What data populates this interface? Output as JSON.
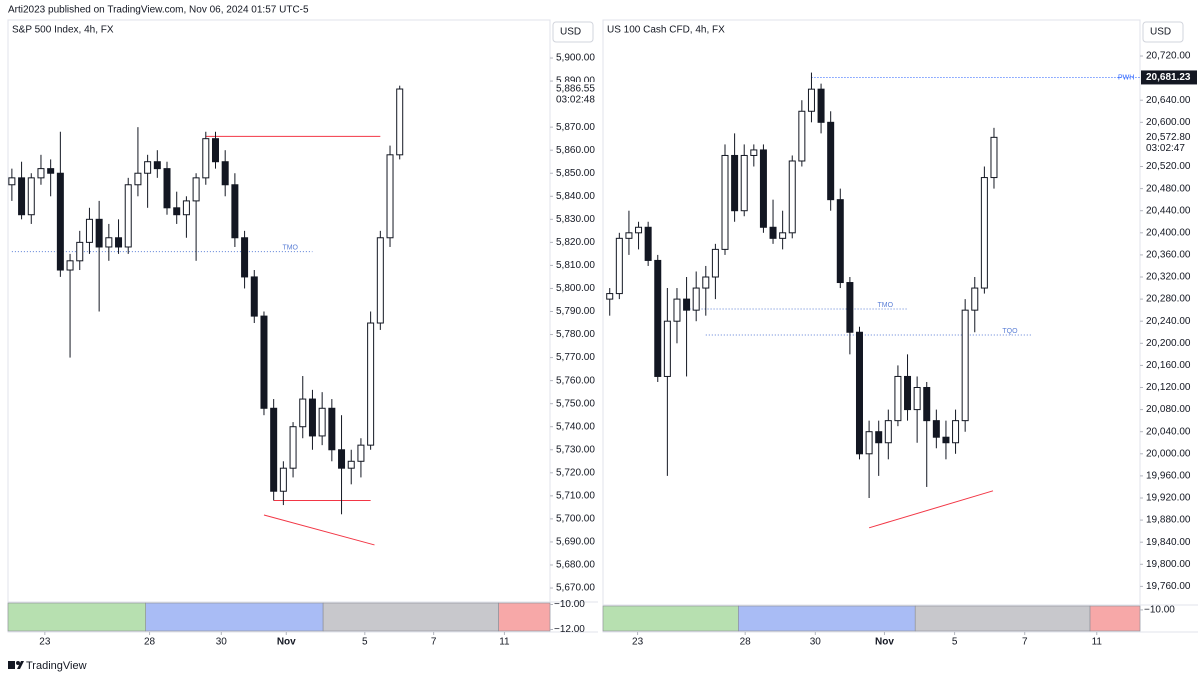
{
  "header": {
    "byline": "Arti2023 published on TradingView.com, Nov 06, 2024 01:57 UTC-5",
    "brand": "TradingView"
  },
  "chart_data": [
    {
      "type": "candlestick",
      "title": "S&P 500 Index, 4h, FX",
      "currency": "USD",
      "candles": {
        "open": [
          5845,
          5848,
          5832,
          5848,
          5852,
          5850,
          5808,
          5812,
          5820,
          5830,
          5818,
          5822,
          5818,
          5845,
          5850,
          5855,
          5852,
          5835,
          5832,
          5838,
          5848,
          5865,
          5855,
          5845,
          5822,
          5805,
          5788,
          5748,
          5712,
          5722,
          5740,
          5752,
          5736,
          5748,
          5730,
          5722,
          5725,
          5732,
          5785,
          5822,
          5858
        ],
        "high": [
          5852,
          5855,
          5850,
          5858,
          5856,
          5868,
          5815,
          5825,
          5835,
          5838,
          5828,
          5830,
          5848,
          5870,
          5858,
          5860,
          5855,
          5842,
          5840,
          5850,
          5868,
          5868,
          5860,
          5850,
          5825,
          5808,
          5790,
          5752,
          5725,
          5742,
          5762,
          5756,
          5755,
          5752,
          5745,
          5730,
          5735,
          5790,
          5825,
          5862,
          5888
        ],
        "low": [
          5838,
          5830,
          5828,
          5845,
          5840,
          5805,
          5770,
          5808,
          5815,
          5790,
          5812,
          5815,
          5815,
          5840,
          5835,
          5848,
          5832,
          5828,
          5822,
          5812,
          5845,
          5852,
          5840,
          5818,
          5800,
          5785,
          5745,
          5708,
          5706,
          5718,
          5735,
          5730,
          5732,
          5725,
          5702,
          5715,
          5718,
          5730,
          5782,
          5818,
          5856
        ],
        "close": [
          5848,
          5832,
          5848,
          5852,
          5850,
          5808,
          5812,
          5820,
          5830,
          5818,
          5822,
          5818,
          5845,
          5850,
          5855,
          5852,
          5835,
          5832,
          5838,
          5848,
          5865,
          5855,
          5845,
          5822,
          5805,
          5788,
          5748,
          5712,
          5722,
          5740,
          5752,
          5736,
          5748,
          5730,
          5722,
          5725,
          5732,
          5785,
          5822,
          5858,
          5886.55
        ]
      },
      "xlim": [
        -0.4,
        55.5
      ],
      "xticks": [
        {
          "value": 3.4,
          "label": "23"
        },
        {
          "value": 14.2,
          "label": "28"
        },
        {
          "value": 21.6,
          "label": "30"
        },
        {
          "value": 28.3,
          "label": "Nov"
        },
        {
          "value": 36.4,
          "label": "5"
        },
        {
          "value": 43.5,
          "label": "7"
        },
        {
          "value": 50.8,
          "label": "11"
        }
      ],
      "ylim": [
        5664.8,
        5916.5
      ],
      "yticks": [
        {
          "value": 5900,
          "label": "5,900.00"
        },
        {
          "value": 5890,
          "label": "5,890.00"
        },
        {
          "value": 5870,
          "label": "5,870.00"
        },
        {
          "value": 5860,
          "label": "5,860.00"
        },
        {
          "value": 5850,
          "label": "5,850.00"
        },
        {
          "value": 5840,
          "label": "5,840.00"
        },
        {
          "value": 5830,
          "label": "5,830.00"
        },
        {
          "value": 5820,
          "label": "5,820.00"
        },
        {
          "value": 5810,
          "label": "5,810.00"
        },
        {
          "value": 5800,
          "label": "5,800.00"
        },
        {
          "value": 5790,
          "label": "5,790.00"
        },
        {
          "value": 5780,
          "label": "5,780.00"
        },
        {
          "value": 5770,
          "label": "5,770.00"
        },
        {
          "value": 5760,
          "label": "5,760.00"
        },
        {
          "value": 5750,
          "label": "5,750.00"
        },
        {
          "value": 5740,
          "label": "5,740.00"
        },
        {
          "value": 5730,
          "label": "5,730.00"
        },
        {
          "value": 5720,
          "label": "5,720.00"
        },
        {
          "value": 5710,
          "label": "5,710.00"
        },
        {
          "value": 5700,
          "label": "5,700.00"
        },
        {
          "value": 5690,
          "label": "5,690.00"
        },
        {
          "value": 5680,
          "label": "5,680.00"
        },
        {
          "value": 5670,
          "label": "5,670.00"
        }
      ],
      "last": {
        "value": 5886.55,
        "label": "5,886.55",
        "countdown": "03:02:48"
      },
      "levels": [
        {
          "label": "TMO",
          "value": 5816,
          "from": 0,
          "to": 31,
          "color": "#5b7fd6",
          "style": "dotted"
        },
        {
          "value": 5866,
          "from": 20,
          "to": 38,
          "color": "#f23645",
          "style": "solid"
        },
        {
          "value": 5708,
          "from": 27,
          "to": 37,
          "color": "#f23645",
          "style": "solid"
        }
      ],
      "trendlines": [
        {
          "x": [
            26,
            37.4
          ],
          "y": [
            5701.7,
            5688.7
          ],
          "color": "#f23645"
        }
      ],
      "pane": {
        "ylim": [
          -9.8,
          -12.2
        ],
        "yticks": [
          {
            "value": -10,
            "label": "−10.00"
          },
          {
            "value": -12,
            "label": "−12.00"
          }
        ],
        "sessions": [
          {
            "from": -0.4,
            "to": 13.8,
            "color": "#b7e0b0"
          },
          {
            "from": 13.8,
            "to": 32.1,
            "color": "#a9bcf5"
          },
          {
            "from": 32.1,
            "to": 50.2,
            "color": "#c8c8cc"
          },
          {
            "from": 50.2,
            "to": 55.5,
            "color": "#f7a8a8"
          }
        ]
      }
    },
    {
      "type": "candlestick",
      "title": "US 100 Cash CFD, 4h, FX",
      "currency": "USD",
      "candles": {
        "open": [
          20280,
          20290,
          20390,
          20400,
          20410,
          20350,
          20140,
          20240,
          20280,
          20260,
          20300,
          20320,
          20370,
          20540,
          20440,
          20540,
          20550,
          20410,
          20390,
          20400,
          20530,
          20620,
          20660,
          20600,
          20460,
          20310,
          20220,
          20000,
          20040,
          20020,
          20060,
          20140,
          20080,
          20120,
          20060,
          20030,
          20020,
          20060,
          20260,
          20300,
          20500
        ],
        "high": [
          20300,
          20400,
          20440,
          20420,
          20420,
          20360,
          20300,
          20300,
          20320,
          20330,
          20340,
          20380,
          20560,
          20580,
          20560,
          20560,
          20560,
          20460,
          20440,
          20540,
          20640,
          20690,
          20670,
          20620,
          20480,
          20320,
          20230,
          20060,
          20060,
          20080,
          20160,
          20180,
          20140,
          20130,
          20080,
          20060,
          20080,
          20280,
          20320,
          20520,
          20590
        ],
        "low": [
          20250,
          20280,
          20360,
          20370,
          20340,
          20130,
          19960,
          20200,
          20140,
          20240,
          20250,
          20280,
          20360,
          20420,
          20430,
          20520,
          20400,
          20380,
          20370,
          20390,
          20520,
          20600,
          20580,
          20440,
          20300,
          20180,
          19990,
          19920,
          19960,
          19990,
          20050,
          20060,
          20020,
          19940,
          20010,
          19990,
          20000,
          20040,
          20220,
          20290,
          20480
        ],
        "close": [
          20290,
          20390,
          20400,
          20410,
          20350,
          20140,
          20240,
          20280,
          20260,
          20300,
          20320,
          20370,
          20540,
          20440,
          20540,
          20550,
          20410,
          20390,
          20400,
          20530,
          20620,
          20660,
          20600,
          20460,
          20310,
          20220,
          20000,
          20040,
          20020,
          20060,
          20140,
          20080,
          20120,
          20060,
          20030,
          20020,
          20060,
          20260,
          20300,
          20500,
          20572.8
        ]
      },
      "xlim": [
        -0.7,
        55.2
      ],
      "xticks": [
        {
          "value": 2.9,
          "label": "23"
        },
        {
          "value": 14.1,
          "label": "28"
        },
        {
          "value": 21.4,
          "label": "30"
        },
        {
          "value": 28.6,
          "label": "Nov"
        },
        {
          "value": 35.9,
          "label": "5"
        },
        {
          "value": 43.2,
          "label": "7"
        },
        {
          "value": 50.7,
          "label": "11"
        }
      ],
      "ylim": [
        19726.3,
        20785.2
      ],
      "yticks": [
        {
          "value": 20720,
          "label": "20,720.00"
        },
        {
          "value": 20640,
          "label": "20,640.00"
        },
        {
          "value": 20600,
          "label": "20,600.00"
        },
        {
          "value": 20520,
          "label": "20,520.00"
        },
        {
          "value": 20480,
          "label": "20,480.00"
        },
        {
          "value": 20440,
          "label": "20,440.00"
        },
        {
          "value": 20400,
          "label": "20,400.00"
        },
        {
          "value": 20360,
          "label": "20,360.00"
        },
        {
          "value": 20320,
          "label": "20,320.00"
        },
        {
          "value": 20280,
          "label": "20,280.00"
        },
        {
          "value": 20240,
          "label": "20,240.00"
        },
        {
          "value": 20200,
          "label": "20,200.00"
        },
        {
          "value": 20160,
          "label": "20,160.00"
        },
        {
          "value": 20120,
          "label": "20,120.00"
        },
        {
          "value": 20080,
          "label": "20,080.00"
        },
        {
          "value": 20040,
          "label": "20,040.00"
        },
        {
          "value": 20000,
          "label": "20,000.00"
        },
        {
          "value": 19960,
          "label": "19,960.00"
        },
        {
          "value": 19920,
          "label": "19,920.00"
        },
        {
          "value": 19880,
          "label": "19,880.00"
        },
        {
          "value": 19840,
          "label": "19,840.00"
        },
        {
          "value": 19800,
          "label": "19,800.00"
        },
        {
          "value": 19760,
          "label": "19,760.00"
        }
      ],
      "last": {
        "value": 20572.8,
        "label": "20,572.80",
        "countdown": "03:02:47"
      },
      "levels": [
        {
          "label": "PWH",
          "value": 20681.23,
          "value_label": "20,681.23",
          "from": 21,
          "to": 55.2,
          "color": "#2962ff",
          "style": "dotted"
        },
        {
          "label": "TMO",
          "value": 20262,
          "from": 8,
          "to": 31,
          "color": "#5b7fd6",
          "style": "dotted"
        },
        {
          "label": "TQO",
          "value": 20215,
          "from": 10,
          "to": 44,
          "color": "#5b7fd6",
          "style": "dotted"
        }
      ],
      "trendlines": [
        {
          "x": [
            27,
            39.9
          ],
          "y": [
            19866,
            19933
          ],
          "color": "#f23645"
        }
      ],
      "pane": {
        "ylim": [
          -9.6,
          -11.8
        ],
        "yticks": [
          {
            "value": -10,
            "label": "−10.00"
          }
        ],
        "sessions": [
          {
            "from": -0.7,
            "to": 13.4,
            "color": "#b7e0b0"
          },
          {
            "from": 13.4,
            "to": 31.8,
            "color": "#a9bcf5"
          },
          {
            "from": 31.8,
            "to": 50,
            "color": "#c8c8cc"
          },
          {
            "from": 50,
            "to": 55.2,
            "color": "#f7a8a8"
          }
        ]
      }
    }
  ]
}
